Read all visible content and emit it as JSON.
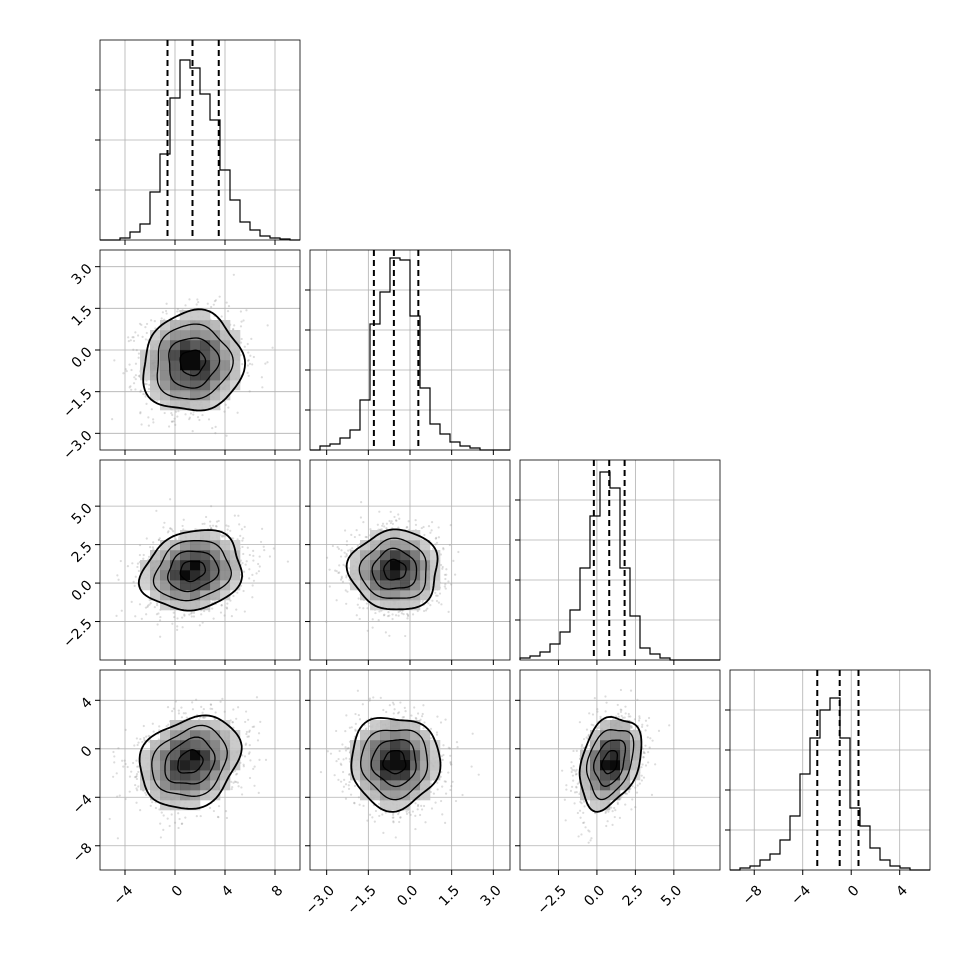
{
  "chart_data": {
    "type": "corner",
    "grid": true,
    "parameters": [
      {
        "range": [
          -6.0,
          10.0
        ],
        "ticks": [
          -4,
          0,
          4,
          8
        ],
        "tick_labels": [
          "−4",
          "0",
          "4",
          "8"
        ],
        "quantiles": [
          -0.6,
          1.4,
          3.5
        ],
        "hist": {
          "edges": [
            -6.0,
            -5.2,
            -4.4,
            -3.6,
            -2.8,
            -2.0,
            -1.2,
            -0.4,
            0.4,
            1.2,
            2.0,
            2.8,
            3.6,
            4.4,
            5.2,
            6.0,
            6.8,
            7.6,
            8.4,
            9.2,
            10.0
          ],
          "values": [
            0,
            0,
            0.01,
            0.04,
            0.08,
            0.24,
            0.43,
            0.71,
            0.9,
            0.86,
            0.73,
            0.6,
            0.35,
            0.2,
            0.09,
            0.05,
            0.02,
            0.01,
            0.005,
            0
          ]
        },
        "hist_ymax": 1.0,
        "hist_ticks": [
          0.25,
          0.5,
          0.75
        ]
      },
      {
        "range": [
          -3.6,
          3.6
        ],
        "ticks": [
          -3.0,
          -1.5,
          0.0,
          1.5,
          3.0
        ],
        "tick_labels": [
          "−3.0",
          "−1.5",
          "0.0",
          "1.5",
          "3.0"
        ],
        "quantiles": [
          -1.3,
          -0.58,
          0.3
        ],
        "hist": {
          "edges": [
            -3.6,
            -3.24,
            -2.88,
            -2.52,
            -2.16,
            -1.8,
            -1.44,
            -1.08,
            -0.72,
            -0.36,
            0.0,
            0.36,
            0.72,
            1.08,
            1.44,
            1.8,
            2.16,
            2.52,
            2.88,
            3.24,
            3.6
          ],
          "values": [
            0,
            0.02,
            0.03,
            0.06,
            0.1,
            0.25,
            0.63,
            0.79,
            0.96,
            0.95,
            0.67,
            0.31,
            0.13,
            0.08,
            0.04,
            0.02,
            0.01,
            0,
            0,
            0
          ]
        },
        "hist_ymax": 1.0,
        "hist_ticks": [
          0.2,
          0.4,
          0.6,
          0.8
        ]
      },
      {
        "range": [
          -5.0,
          8.0
        ],
        "ticks": [
          -2.5,
          0.0,
          2.5,
          5.0
        ],
        "tick_labels": [
          "−2.5",
          "0.0",
          "2.5",
          "5.0"
        ],
        "quantiles": [
          -0.2,
          0.8,
          1.8
        ],
        "hist": {
          "edges": [
            -5.0,
            -4.35,
            -3.7,
            -3.05,
            -2.4,
            -1.75,
            -1.1,
            -0.45,
            0.2,
            0.85,
            1.5,
            2.15,
            2.8,
            3.45,
            4.1,
            4.75,
            5.4,
            6.05,
            6.7,
            7.35,
            8.0
          ],
          "values": [
            0.01,
            0.02,
            0.04,
            0.08,
            0.14,
            0.25,
            0.46,
            0.72,
            0.94,
            0.86,
            0.46,
            0.22,
            0.06,
            0.03,
            0.01,
            0,
            0,
            0,
            0,
            0
          ]
        },
        "hist_ymax": 1.0,
        "hist_ticks": [
          0.2,
          0.4,
          0.6,
          0.8
        ]
      },
      {
        "range": [
          -10.0,
          6.5
        ],
        "ticks": [
          -8,
          -4,
          0,
          4
        ],
        "tick_labels": [
          "−8",
          "−4",
          "0",
          "4"
        ],
        "quantiles": [
          -2.8,
          -0.95,
          0.6
        ],
        "hist": {
          "edges": [
            -10.0,
            -9.175,
            -8.35,
            -7.525,
            -6.7,
            -5.875,
            -5.05,
            -4.225,
            -3.4,
            -2.575,
            -1.75,
            -0.925,
            -0.1,
            0.725,
            1.55,
            2.375,
            3.2,
            4.025,
            4.85,
            5.675,
            6.5
          ],
          "values": [
            0,
            0.01,
            0.02,
            0.05,
            0.08,
            0.15,
            0.27,
            0.48,
            0.66,
            0.8,
            0.86,
            0.66,
            0.31,
            0.22,
            0.11,
            0.05,
            0.02,
            0.01,
            0,
            0
          ]
        },
        "hist_ymax": 1.0,
        "hist_ticks": [
          0.2,
          0.4,
          0.6,
          0.8
        ]
      }
    ],
    "pairs": [
      {
        "row": 1,
        "col": 0,
        "mean": [
          1.4,
          -0.45
        ],
        "sigma": [
          2.0,
          0.9
        ],
        "rho": 0.05
      },
      {
        "row": 2,
        "col": 0,
        "mean": [
          1.4,
          0.8
        ],
        "sigma": [
          2.0,
          1.3
        ],
        "rho": 0.15
      },
      {
        "row": 2,
        "col": 1,
        "mean": [
          -0.55,
          0.85
        ],
        "sigma": [
          0.8,
          1.3
        ],
        "rho": 0.0
      },
      {
        "row": 3,
        "col": 0,
        "mean": [
          1.2,
          -1.1
        ],
        "sigma": [
          2.0,
          1.9
        ],
        "rho": 0.2
      },
      {
        "row": 3,
        "col": 1,
        "mean": [
          -0.55,
          -1.1
        ],
        "sigma": [
          0.8,
          1.9
        ],
        "rho": 0.0
      },
      {
        "row": 3,
        "col": 2,
        "mean": [
          0.85,
          -1.1
        ],
        "sigma": [
          1.0,
          1.9
        ],
        "rho": 0.3
      }
    ],
    "contour_levels_sigma": [
      0.5,
      1.0,
      1.5,
      2.0
    ]
  }
}
